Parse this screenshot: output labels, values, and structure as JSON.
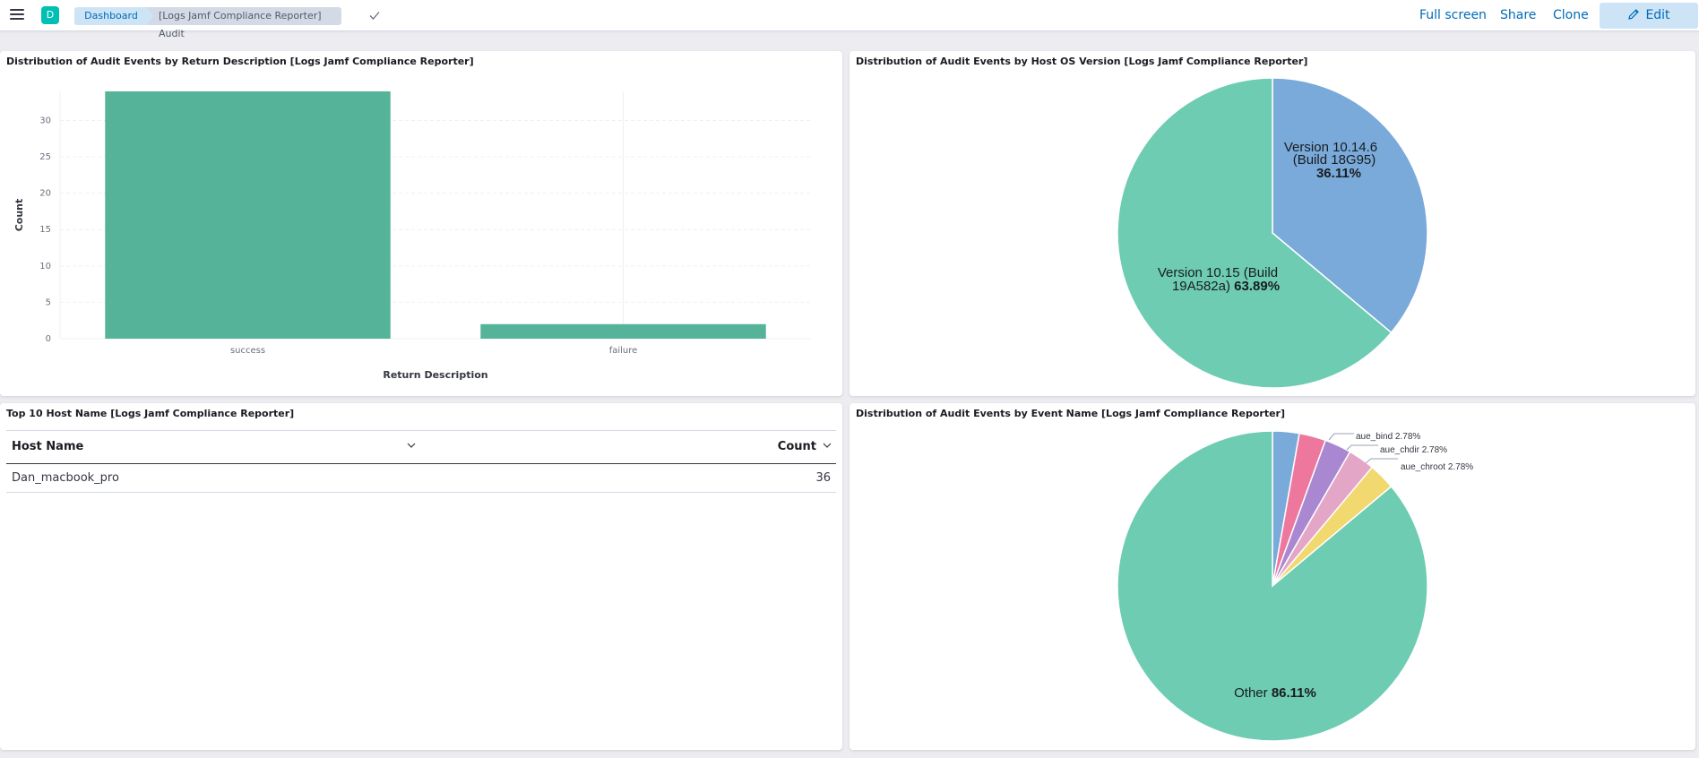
{
  "header": {
    "breadcrumb_root": "Dashboard",
    "breadcrumb_current": "[Logs Jamf Compliance Reporter] Audit",
    "avatar_letter": "D",
    "full_screen": "Full screen",
    "share": "Share",
    "clone": "Clone",
    "edit": "Edit"
  },
  "panels": {
    "return_desc": {
      "title": "Distribution of Audit Events by Return Description [Logs Jamf Compliance Reporter]"
    },
    "os_version": {
      "title": "Distribution of Audit Events by Host OS Version [Logs Jamf Compliance Reporter]"
    },
    "host_table": {
      "title": "Top 10 Host Name [Logs Jamf Compliance Reporter]"
    },
    "event_name": {
      "title": "Distribution of Audit Events by Event Name [Logs Jamf Compliance Reporter]"
    }
  },
  "table": {
    "columns": [
      "Host Name",
      "Count"
    ],
    "rows": [
      [
        "Dan_macbook_pro",
        "36"
      ]
    ]
  },
  "colors": {
    "bar": "#54b399",
    "pie_teal": "#6dccb1",
    "pie_blue": "#79aad9",
    "pie_pink": "#ee789d",
    "pie_purple": "#a987d1",
    "pie_lightpink": "#e4a6c7",
    "pie_yellow": "#f1d86f",
    "accent": "#006bb8"
  },
  "chart_data": [
    {
      "type": "bar",
      "title": "Distribution of Audit Events by Return Description [Logs Jamf Compliance Reporter]",
      "categories": [
        "success",
        "failure"
      ],
      "values": [
        34,
        2
      ],
      "xlabel": "Return Description",
      "ylabel": "Count",
      "yticks": [
        "0",
        "5",
        "10",
        "15",
        "20",
        "25",
        "30"
      ],
      "ylim": [
        0,
        34
      ],
      "grid": true
    },
    {
      "type": "pie",
      "title": "Distribution of Audit Events by Host OS Version [Logs Jamf Compliance Reporter]",
      "slices": [
        {
          "label_line1": "Version 10.14.6",
          "label_line2": "(Build 18G95)",
          "pct": "36.11%",
          "value": 36.11
        },
        {
          "label_line1": "Version 10.15 (Build",
          "label_line2": "19A582a)",
          "pct": "63.89%",
          "value": 63.89
        }
      ]
    },
    {
      "type": "pie",
      "title": "Distribution of Audit Events by Event Name [Logs Jamf Compliance Reporter]",
      "slices": [
        {
          "label": "",
          "pct": "2.78%",
          "value": 2.78
        },
        {
          "label": "",
          "pct": "2.78%",
          "value": 2.78
        },
        {
          "label": "aue_bind",
          "pct": "2.78%",
          "value": 2.78
        },
        {
          "label": "aue_chdir",
          "pct": "2.78%",
          "value": 2.78
        },
        {
          "label": "aue_chroot",
          "pct": "2.78%",
          "value": 2.78
        },
        {
          "label": "Other",
          "pct": "86.11%",
          "value": 86.11
        }
      ]
    }
  ]
}
